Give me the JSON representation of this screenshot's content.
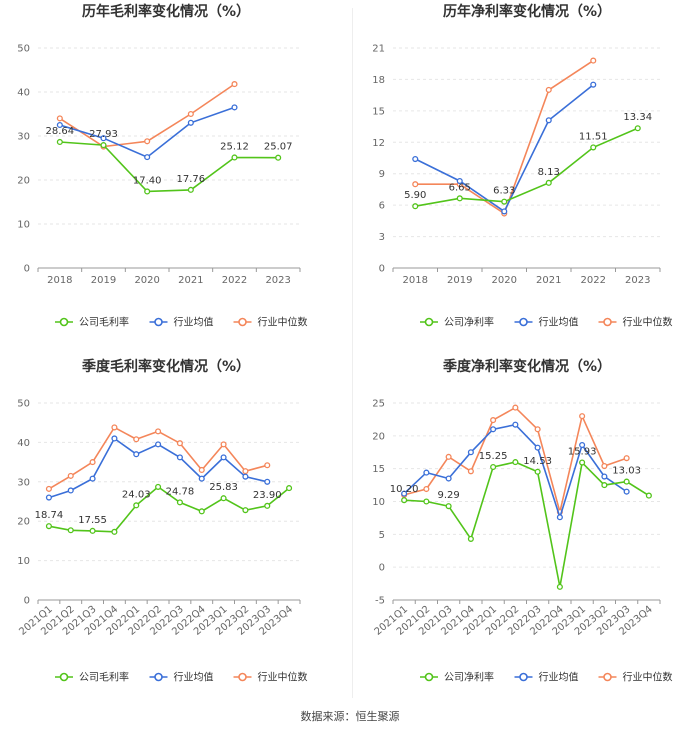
{
  "source_text": "数据来源：恒生聚源",
  "chart_data": [
    {
      "type": "line",
      "title": "历年毛利率变化情况（%）",
      "categories": [
        "2018",
        "2019",
        "2020",
        "2021",
        "2022",
        "2023"
      ],
      "ylim": [
        0,
        50
      ],
      "yticks": [
        0,
        10,
        20,
        30,
        40,
        50
      ],
      "grid": true,
      "legend_position": "bottom",
      "series": [
        {
          "name": "公司毛利率",
          "color": "#52c41a",
          "values": [
            28.64,
            27.93,
            17.4,
            17.76,
            25.12,
            25.07
          ]
        },
        {
          "name": "行业均值",
          "color": "#3a6fd8",
          "values": [
            32.5,
            29.5,
            25.2,
            33.0,
            36.5,
            null
          ]
        },
        {
          "name": "行业中位数",
          "color": "#f4865a",
          "values": [
            34.0,
            27.6,
            28.8,
            35.0,
            41.8,
            null
          ]
        }
      ],
      "data_labels": [
        {
          "index": 0,
          "text": "28.64"
        },
        {
          "index": 1,
          "text": "27.93"
        },
        {
          "index": 2,
          "text": "17.40"
        },
        {
          "index": 3,
          "text": "17.76"
        },
        {
          "index": 4,
          "text": "25.12"
        },
        {
          "index": 5,
          "text": "25.07"
        }
      ]
    },
    {
      "type": "line",
      "title": "历年净利率变化情况（%）",
      "categories": [
        "2018",
        "2019",
        "2020",
        "2021",
        "2022",
        "2023"
      ],
      "ylim": [
        0,
        21
      ],
      "yticks": [
        0,
        3,
        6,
        9,
        12,
        15,
        18,
        21
      ],
      "grid": true,
      "legend_position": "bottom",
      "series": [
        {
          "name": "公司净利率",
          "color": "#52c41a",
          "values": [
            5.9,
            6.65,
            6.33,
            8.13,
            11.51,
            13.34
          ]
        },
        {
          "name": "行业均值",
          "color": "#3a6fd8",
          "values": [
            10.4,
            8.3,
            5.4,
            14.1,
            17.5,
            null
          ]
        },
        {
          "name": "行业中位数",
          "color": "#f4865a",
          "values": [
            8.0,
            8.0,
            5.2,
            17.0,
            19.8,
            null
          ]
        }
      ],
      "data_labels": [
        {
          "index": 0,
          "text": "5.90"
        },
        {
          "index": 1,
          "text": "6.65"
        },
        {
          "index": 2,
          "text": "6.33"
        },
        {
          "index": 3,
          "text": "8.13"
        },
        {
          "index": 4,
          "text": "11.51"
        },
        {
          "index": 5,
          "text": "13.34"
        }
      ]
    },
    {
      "type": "line",
      "title": "季度毛利率变化情况（%）",
      "categories": [
        "2021Q1",
        "2021Q2",
        "2021Q3",
        "2021Q4",
        "2022Q1",
        "2022Q2",
        "2022Q3",
        "2022Q4",
        "2023Q1",
        "2023Q2",
        "2023Q3",
        "2023Q4"
      ],
      "ylim": [
        0,
        50
      ],
      "yticks": [
        0,
        10,
        20,
        30,
        40,
        50
      ],
      "grid": true,
      "legend_position": "bottom",
      "series": [
        {
          "name": "公司毛利率",
          "color": "#52c41a",
          "values": [
            18.74,
            17.7,
            17.55,
            17.3,
            24.03,
            28.7,
            24.78,
            22.5,
            25.83,
            22.8,
            23.9,
            28.4
          ]
        },
        {
          "name": "行业均值",
          "color": "#3a6fd8",
          "values": [
            26.0,
            27.8,
            30.8,
            41.0,
            37.0,
            39.5,
            36.2,
            30.8,
            36.2,
            31.3,
            30.0,
            null
          ]
        },
        {
          "name": "行业中位数",
          "color": "#f4865a",
          "values": [
            28.2,
            31.5,
            35.0,
            43.8,
            40.8,
            42.8,
            39.8,
            33.0,
            39.5,
            32.7,
            34.2,
            null
          ]
        }
      ],
      "data_labels": [
        {
          "index": 0,
          "text": "18.74"
        },
        {
          "index": 2,
          "text": "17.55"
        },
        {
          "index": 4,
          "text": "24.03"
        },
        {
          "index": 6,
          "text": "24.78"
        },
        {
          "index": 8,
          "text": "25.83"
        },
        {
          "index": 10,
          "text": "23.90"
        }
      ]
    },
    {
      "type": "line",
      "title": "季度净利率变化情况（%）",
      "categories": [
        "2021Q1",
        "2021Q2",
        "2021Q3",
        "2021Q4",
        "2022Q1",
        "2022Q2",
        "2022Q3",
        "2022Q4",
        "2023Q1",
        "2023Q2",
        "2023Q3",
        "2023Q4"
      ],
      "ylim": [
        -5,
        25
      ],
      "yticks": [
        -5,
        0,
        5,
        10,
        15,
        20,
        25
      ],
      "grid": true,
      "legend_position": "bottom",
      "series": [
        {
          "name": "公司净利率",
          "color": "#52c41a",
          "values": [
            10.2,
            10.0,
            9.29,
            4.3,
            15.25,
            16.0,
            14.53,
            -3.0,
            15.93,
            12.5,
            13.03,
            10.9
          ]
        },
        {
          "name": "行业均值",
          "color": "#3a6fd8",
          "values": [
            11.2,
            14.4,
            13.5,
            17.5,
            21.0,
            21.7,
            18.2,
            7.6,
            18.6,
            13.8,
            11.5,
            null
          ]
        },
        {
          "name": "行业中位数",
          "color": "#f4865a",
          "values": [
            11.0,
            11.9,
            16.8,
            14.6,
            22.4,
            24.3,
            21.0,
            8.4,
            23.0,
            15.4,
            16.6,
            null
          ]
        }
      ],
      "data_labels": [
        {
          "index": 0,
          "text": "10.20"
        },
        {
          "index": 2,
          "text": "9.29"
        },
        {
          "index": 4,
          "text": "15.25"
        },
        {
          "index": 6,
          "text": "14.53"
        },
        {
          "index": 8,
          "text": "15.93"
        },
        {
          "index": 10,
          "text": "13.03"
        }
      ]
    }
  ]
}
